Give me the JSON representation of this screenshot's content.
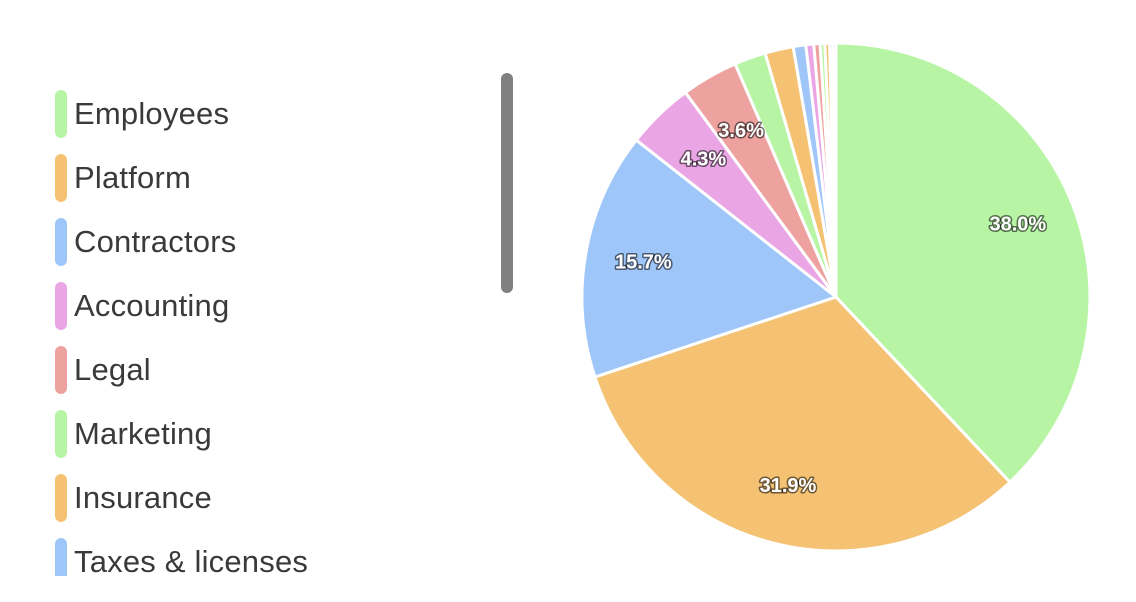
{
  "chart_data": {
    "type": "pie",
    "title": "",
    "slices": [
      {
        "label": "Employees",
        "value": 38.0,
        "display": "38.0%",
        "color": "#b7f5a5"
      },
      {
        "label": "Platform",
        "value": 31.9,
        "display": "31.9%",
        "color": "#f4c272"
      },
      {
        "label": "Contractors",
        "value": 15.7,
        "display": "15.7%",
        "color": "#9fc6f9"
      },
      {
        "label": "Accounting",
        "value": 4.3,
        "display": "4.3%",
        "color": "#eaa5e4"
      },
      {
        "label": "Legal",
        "value": 3.6,
        "display": "3.6%",
        "color": "#eda2a0"
      },
      {
        "label": "Marketing",
        "value": 2.0,
        "display": "",
        "color": "#b7f5a5"
      },
      {
        "label": "Insurance",
        "value": 1.8,
        "display": "",
        "color": "#f4c272"
      },
      {
        "label": "Taxes & licenses",
        "value": 0.8,
        "display": "",
        "color": "#9fc6f9"
      },
      {
        "label": "",
        "value": 0.5,
        "display": "",
        "color": "#eaa5e4"
      },
      {
        "label": "",
        "value": 0.4,
        "display": "",
        "color": "#eda2a0"
      },
      {
        "label": "",
        "value": 0.3,
        "display": "",
        "color": "#b7f5a5"
      },
      {
        "label": "",
        "value": 0.3,
        "display": "",
        "color": "#f4c272"
      },
      {
        "label": "",
        "value": 0.2,
        "display": "",
        "color": "#9fc6f9"
      },
      {
        "label": "",
        "value": 0.2,
        "display": "",
        "color": "#eaa5e4"
      }
    ],
    "legend_placement": "left",
    "start_angle": "top",
    "direction": "clockwise"
  }
}
